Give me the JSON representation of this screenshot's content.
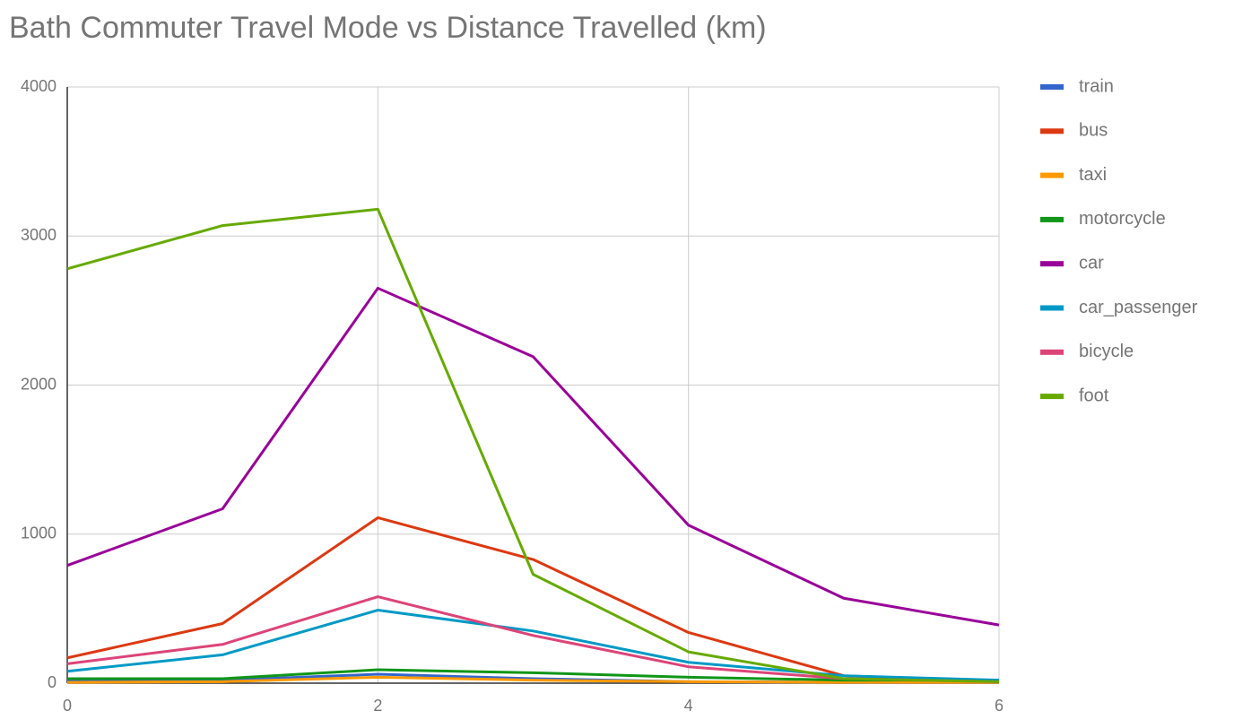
{
  "chart_data": {
    "type": "line",
    "title": "Bath Commuter Travel Mode vs Distance Travelled (km)",
    "x": [
      0,
      1,
      2,
      3,
      4,
      5,
      6
    ],
    "xlim": [
      0,
      6
    ],
    "xticks": [
      0,
      2,
      4,
      6
    ],
    "ylim": [
      0,
      4000
    ],
    "yticks": [
      0,
      1000,
      2000,
      3000,
      4000
    ],
    "grid": true,
    "legend": "right",
    "series": [
      {
        "name": "train",
        "color": "#3366cc",
        "values": [
          20,
          20,
          60,
          30,
          10,
          5,
          5
        ]
      },
      {
        "name": "bus",
        "color": "#dc3912",
        "values": [
          170,
          400,
          1110,
          830,
          340,
          50,
          10
        ]
      },
      {
        "name": "taxi",
        "color": "#ff9900",
        "values": [
          5,
          10,
          40,
          20,
          10,
          5,
          5
        ]
      },
      {
        "name": "motorcycle",
        "color": "#109618",
        "values": [
          30,
          30,
          90,
          70,
          40,
          20,
          20
        ]
      },
      {
        "name": "car",
        "color": "#990099",
        "values": [
          790,
          1170,
          2650,
          2190,
          1060,
          570,
          390
        ]
      },
      {
        "name": "car_passenger",
        "color": "#0099c6",
        "values": [
          80,
          190,
          490,
          350,
          140,
          50,
          20
        ]
      },
      {
        "name": "bicycle",
        "color": "#dd4477",
        "values": [
          130,
          260,
          580,
          320,
          110,
          30,
          10
        ]
      },
      {
        "name": "foot",
        "color": "#66aa00",
        "values": [
          2780,
          3070,
          3180,
          730,
          210,
          30,
          10
        ]
      }
    ]
  }
}
